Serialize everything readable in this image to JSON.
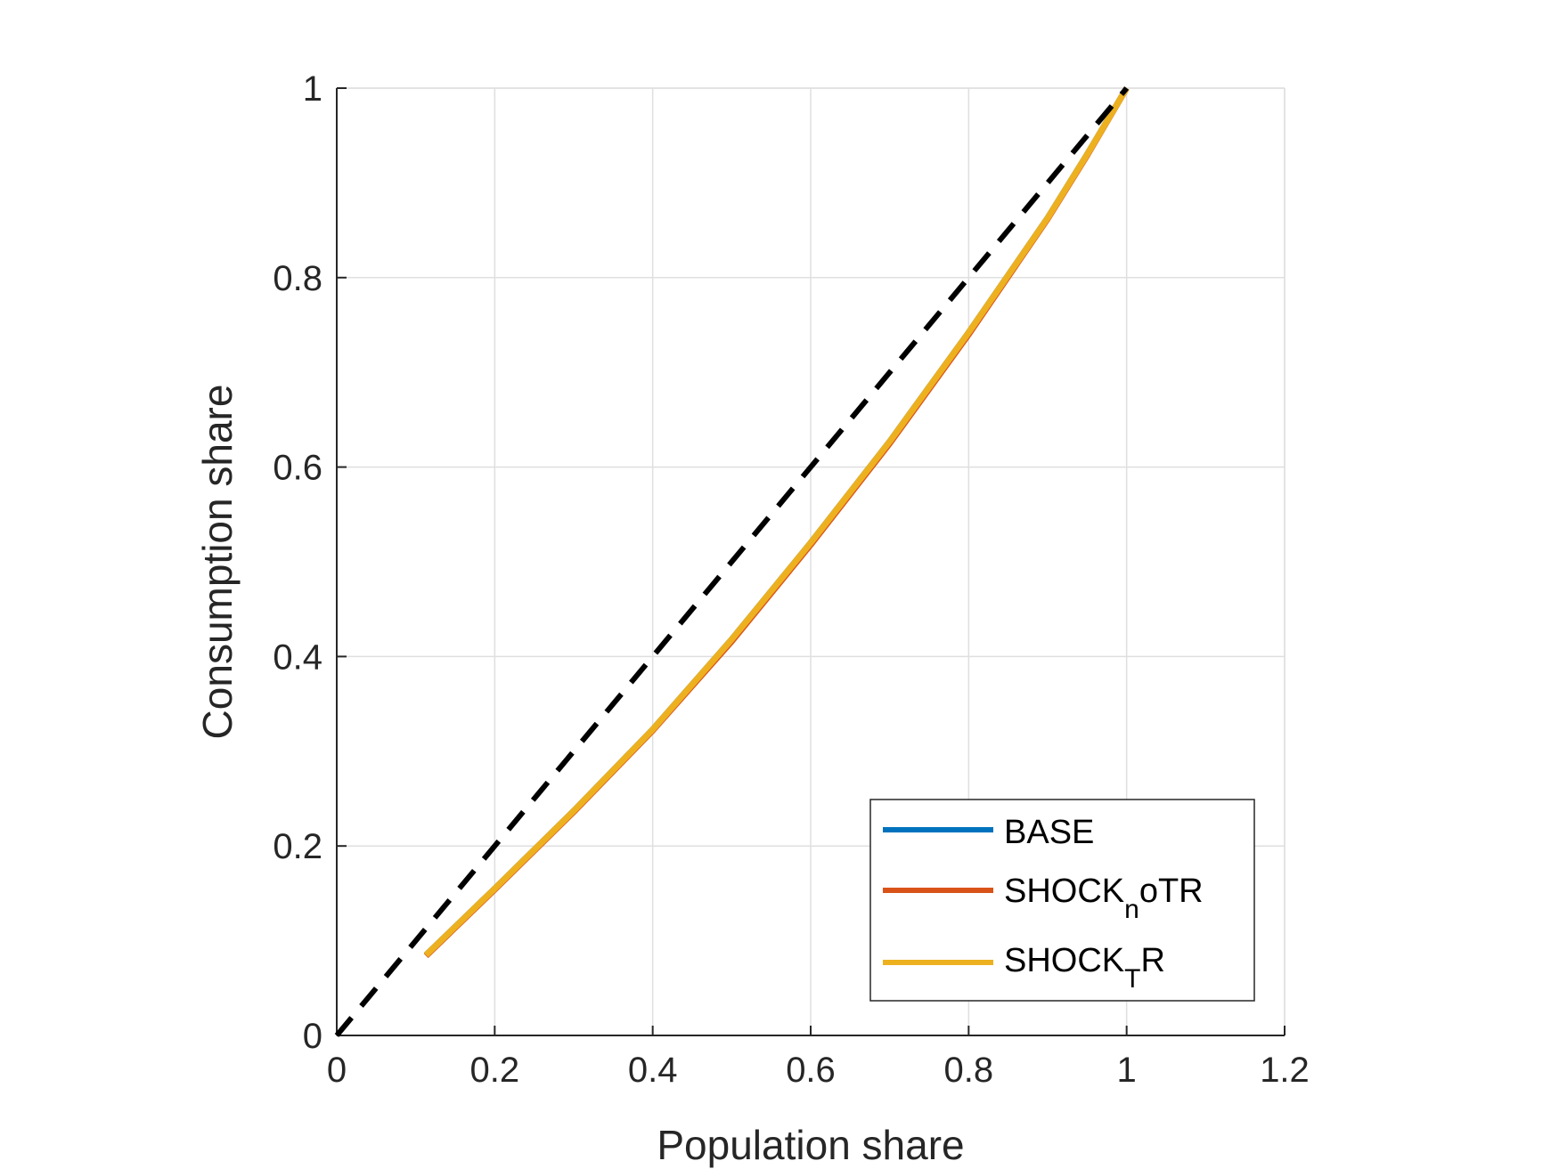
{
  "chart_data": {
    "type": "line",
    "xlabel": "Population share",
    "ylabel": "Consumption share",
    "xlim": [
      0,
      1.2
    ],
    "ylim": [
      0,
      1
    ],
    "xticks": [
      0,
      0.2,
      0.4,
      0.6,
      0.8,
      1,
      1.2
    ],
    "yticks": [
      0,
      0.2,
      0.4,
      0.6,
      0.8,
      1
    ],
    "xtick_labels": [
      "0",
      "0.2",
      "0.4",
      "0.6",
      "0.8",
      "1",
      "1.2"
    ],
    "ytick_labels": [
      "0",
      "0.2",
      "0.4",
      "0.6",
      "0.8",
      "1"
    ],
    "grid": true,
    "legend_position": "bottom-right",
    "series": [
      {
        "name": "BASE",
        "color": "#0072BD",
        "x": [
          0.113,
          0.2,
          0.3,
          0.4,
          0.5,
          0.6,
          0.7,
          0.8,
          0.9,
          0.95,
          1.0
        ],
        "y": [
          0.085,
          0.155,
          0.237,
          0.323,
          0.418,
          0.52,
          0.627,
          0.742,
          0.863,
          0.93,
          1.0
        ]
      },
      {
        "name": "SHOCK_noTR",
        "legend_main": "SHOCK",
        "legend_sub": "n",
        "legend_tail": "oTR",
        "color": "#D95319",
        "x": [
          0.113,
          0.2,
          0.3,
          0.4,
          0.5,
          0.6,
          0.7,
          0.8,
          0.9,
          0.95,
          1.0
        ],
        "y": [
          0.084,
          0.154,
          0.236,
          0.322,
          0.416,
          0.518,
          0.625,
          0.74,
          0.862,
          0.929,
          1.0
        ]
      },
      {
        "name": "SHOCK_TR",
        "legend_main": "SHOCK",
        "legend_sub": "T",
        "legend_tail": "R",
        "color": "#EDB120",
        "x": [
          0.113,
          0.2,
          0.3,
          0.4,
          0.5,
          0.6,
          0.7,
          0.8,
          0.9,
          0.95,
          1.0
        ],
        "y": [
          0.085,
          0.155,
          0.237,
          0.323,
          0.418,
          0.52,
          0.627,
          0.742,
          0.863,
          0.93,
          1.0
        ]
      },
      {
        "name": "equality",
        "color": "#000000",
        "dashed": true,
        "in_legend": false,
        "x": [
          0,
          1
        ],
        "y": [
          0,
          1
        ]
      }
    ]
  }
}
